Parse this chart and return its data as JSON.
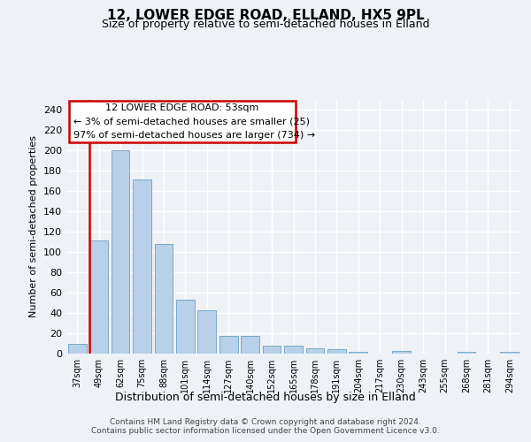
{
  "title1": "12, LOWER EDGE ROAD, ELLAND, HX5 9PL",
  "title2": "Size of property relative to semi-detached houses in Elland",
  "xlabel": "Distribution of semi-detached houses by size in Elland",
  "ylabel": "Number of semi-detached properties",
  "categories": [
    "37sqm",
    "49sqm",
    "62sqm",
    "75sqm",
    "88sqm",
    "101sqm",
    "114sqm",
    "127sqm",
    "140sqm",
    "152sqm",
    "165sqm",
    "178sqm",
    "191sqm",
    "204sqm",
    "217sqm",
    "230sqm",
    "243sqm",
    "255sqm",
    "268sqm",
    "281sqm",
    "294sqm"
  ],
  "values": [
    10,
    111,
    200,
    171,
    108,
    53,
    43,
    17,
    17,
    8,
    8,
    5,
    4,
    2,
    0,
    3,
    0,
    0,
    2,
    0,
    2
  ],
  "bar_color": "#b8d0e8",
  "bar_edge_color": "#7aaac8",
  "highlight_line_color": "#cc0000",
  "ylim": [
    0,
    250
  ],
  "yticks": [
    0,
    20,
    40,
    60,
    80,
    100,
    120,
    140,
    160,
    180,
    200,
    220,
    240
  ],
  "annotation_title": "12 LOWER EDGE ROAD: 53sqm",
  "annotation_line1": "← 3% of semi-detached houses are smaller (25)",
  "annotation_line2": "97% of semi-detached houses are larger (734) →",
  "footer1": "Contains HM Land Registry data © Crown copyright and database right 2024.",
  "footer2": "Contains public sector information licensed under the Open Government Licence v3.0.",
  "bg_color": "#eef2f7",
  "grid_color": "#ffffff"
}
